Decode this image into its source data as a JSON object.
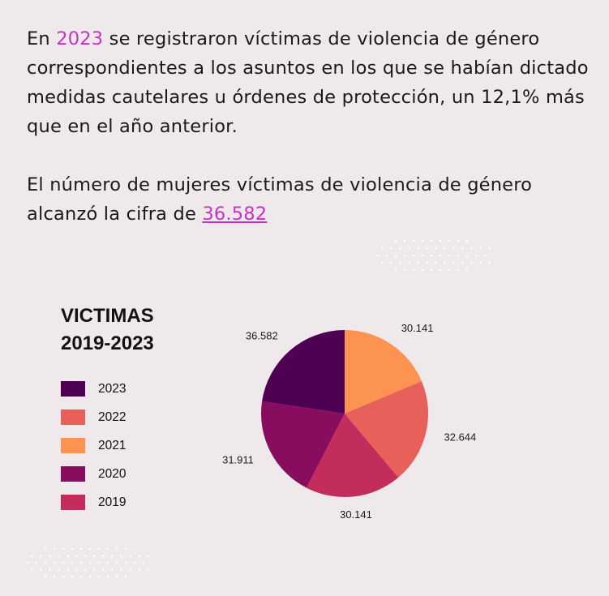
{
  "intro": {
    "p1_before": "En ",
    "p1_year": "2023",
    "p1_after": " se registraron víctimas de violencia de género correspondientes a los asuntos en los que se habían dictado medidas cautelares u órdenes de protección, un 12,1% más que en el año anterior.",
    "p2_before": "El número de mujeres víctimas de violencia de género alcanzó la cifra de ",
    "p2_link": "36.582"
  },
  "colors": {
    "background": "#efe9eb",
    "highlight": "#c632c6"
  },
  "chart_data": {
    "type": "pie",
    "title": "VICTIMAS 2019-2023",
    "title_lines": [
      "VICTIMAS",
      "2019-2023"
    ],
    "legend_position": "left",
    "slices": [
      {
        "label": "2021",
        "value": 30141,
        "display": "30.141",
        "color": "#fc9350"
      },
      {
        "label": "2022",
        "value": 32644,
        "display": "32.644",
        "color": "#e7605a"
      },
      {
        "label": "2019",
        "value": 30141,
        "display": "30.141",
        "color": "#c22d5c"
      },
      {
        "label": "2020",
        "value": 31911,
        "display": "31.911",
        "color": "#880d5e"
      },
      {
        "label": "2023",
        "value": 36582,
        "display": "36.582",
        "color": "#4e0052"
      }
    ],
    "legend": [
      {
        "label": "2023",
        "color": "#4e0052"
      },
      {
        "label": "2022",
        "color": "#e7605a"
      },
      {
        "label": "2021",
        "color": "#fc9350"
      },
      {
        "label": "2020",
        "color": "#880d5e"
      },
      {
        "label": "2019",
        "color": "#c22d5c"
      }
    ]
  }
}
